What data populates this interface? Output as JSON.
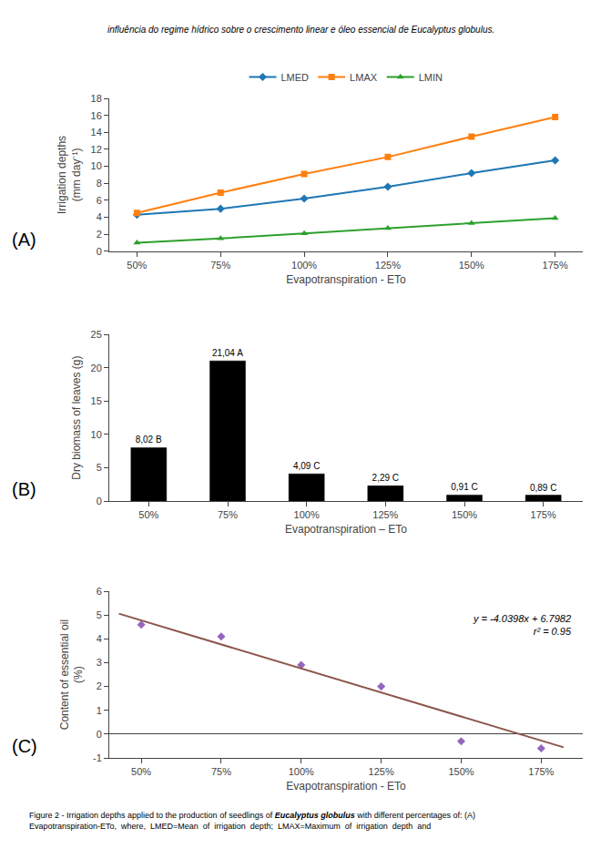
{
  "title": "influência do regime hídrico sobre o crescimento linear e óleo essencial de Eucalyptus globulus.",
  "caption": [
    [
      "Figure 2 - Irrigation depths applied to the production of seedlings of ",
      "Eucalyptus globulus",
      " with different percentages of: (A)"
    ],
    [
      "Evapotranspiration-ETo,  where,  LMED=Mean  of  irrigation  depth;  LMAX=Maximum  of  irrigation  depth  and"
    ]
  ],
  "chart_data": [
    {
      "type": "line",
      "label": "(A)",
      "x_label": "Evapotranspiration - ETo",
      "y_label": "Irrigation depths\n(mm day⁻¹)",
      "categories": [
        "50%",
        "75%",
        "100%",
        "125%",
        "150%",
        "175%"
      ],
      "series": [
        {
          "name": "LMED",
          "values": [
            4.3,
            5.0,
            6.2,
            7.6,
            9.2,
            10.7
          ],
          "marker": "diamond",
          "line_style": "solid"
        },
        {
          "name": "LMAX",
          "values": [
            4.5,
            6.9,
            9.1,
            11.1,
            13.5,
            15.8
          ],
          "marker": "square",
          "line_style": "solid"
        },
        {
          "name": "LMIN",
          "values": [
            1.0,
            1.5,
            2.1,
            2.7,
            3.3,
            3.9
          ],
          "marker": "triangle-up",
          "line_style": "solid"
        }
      ],
      "ylim": [
        0,
        18
      ],
      "yticks": [
        0,
        2,
        4,
        6,
        8,
        10,
        12,
        14,
        16,
        18
      ],
      "grid": false,
      "legend": "top"
    },
    {
      "type": "bar",
      "label": "(B)",
      "x_label": "Evapotranspiration – ETo",
      "y_label": "Dry biomass of leaves (g)",
      "categories": [
        "50%",
        "75%",
        "100%",
        "125%",
        "150%",
        "175%"
      ],
      "values": [
        8.02,
        21.04,
        4.09,
        2.29,
        0.91,
        0.89
      ],
      "value_labels": [
        "8,02 B",
        "21,04 A",
        "4,09 C",
        "2,29 C",
        "0,91 C",
        "0,89 C"
      ],
      "data_labels": true,
      "color": "#000000",
      "ylim": [
        0,
        25
      ],
      "yticks": [
        0,
        5,
        10,
        15,
        20,
        25
      ],
      "grid": false
    },
    {
      "type": "scatter",
      "label": "(C)",
      "x_label": "Evapotranspiration - ETo",
      "y_label": "Content of essential oil\n(%)",
      "series": [
        {
          "type": "scatter",
          "x": [
            0.5,
            0.75,
            1.0,
            1.25,
            1.5,
            1.75
          ],
          "values": [
            4.6,
            4.1,
            2.9,
            2.0,
            -0.3,
            -0.6
          ],
          "marker": "diamond"
        },
        {
          "type": "line",
          "x": [
            0.43,
            1.82
          ],
          "values": [
            5.061086,
            -0.554236
          ],
          "line_style": "solid"
        }
      ],
      "annotation": [
        "y = -4.0398x + 6.7982",
        "r² = 0.95"
      ],
      "xlim": [
        0.4,
        1.88
      ],
      "xticks": [
        {
          "value": 0.5,
          "label": "50%"
        },
        {
          "value": 0.75,
          "label": "75%"
        },
        {
          "value": 1.0,
          "label": "100%"
        },
        {
          "value": 1.25,
          "label": "125%"
        },
        {
          "value": 1.5,
          "label": "150%"
        },
        {
          "value": 1.75,
          "label": "175%"
        }
      ],
      "ylim": [
        -1,
        6
      ],
      "yticks": [
        -1,
        0,
        1,
        2,
        3,
        4,
        5,
        6
      ],
      "grid": false
    }
  ]
}
